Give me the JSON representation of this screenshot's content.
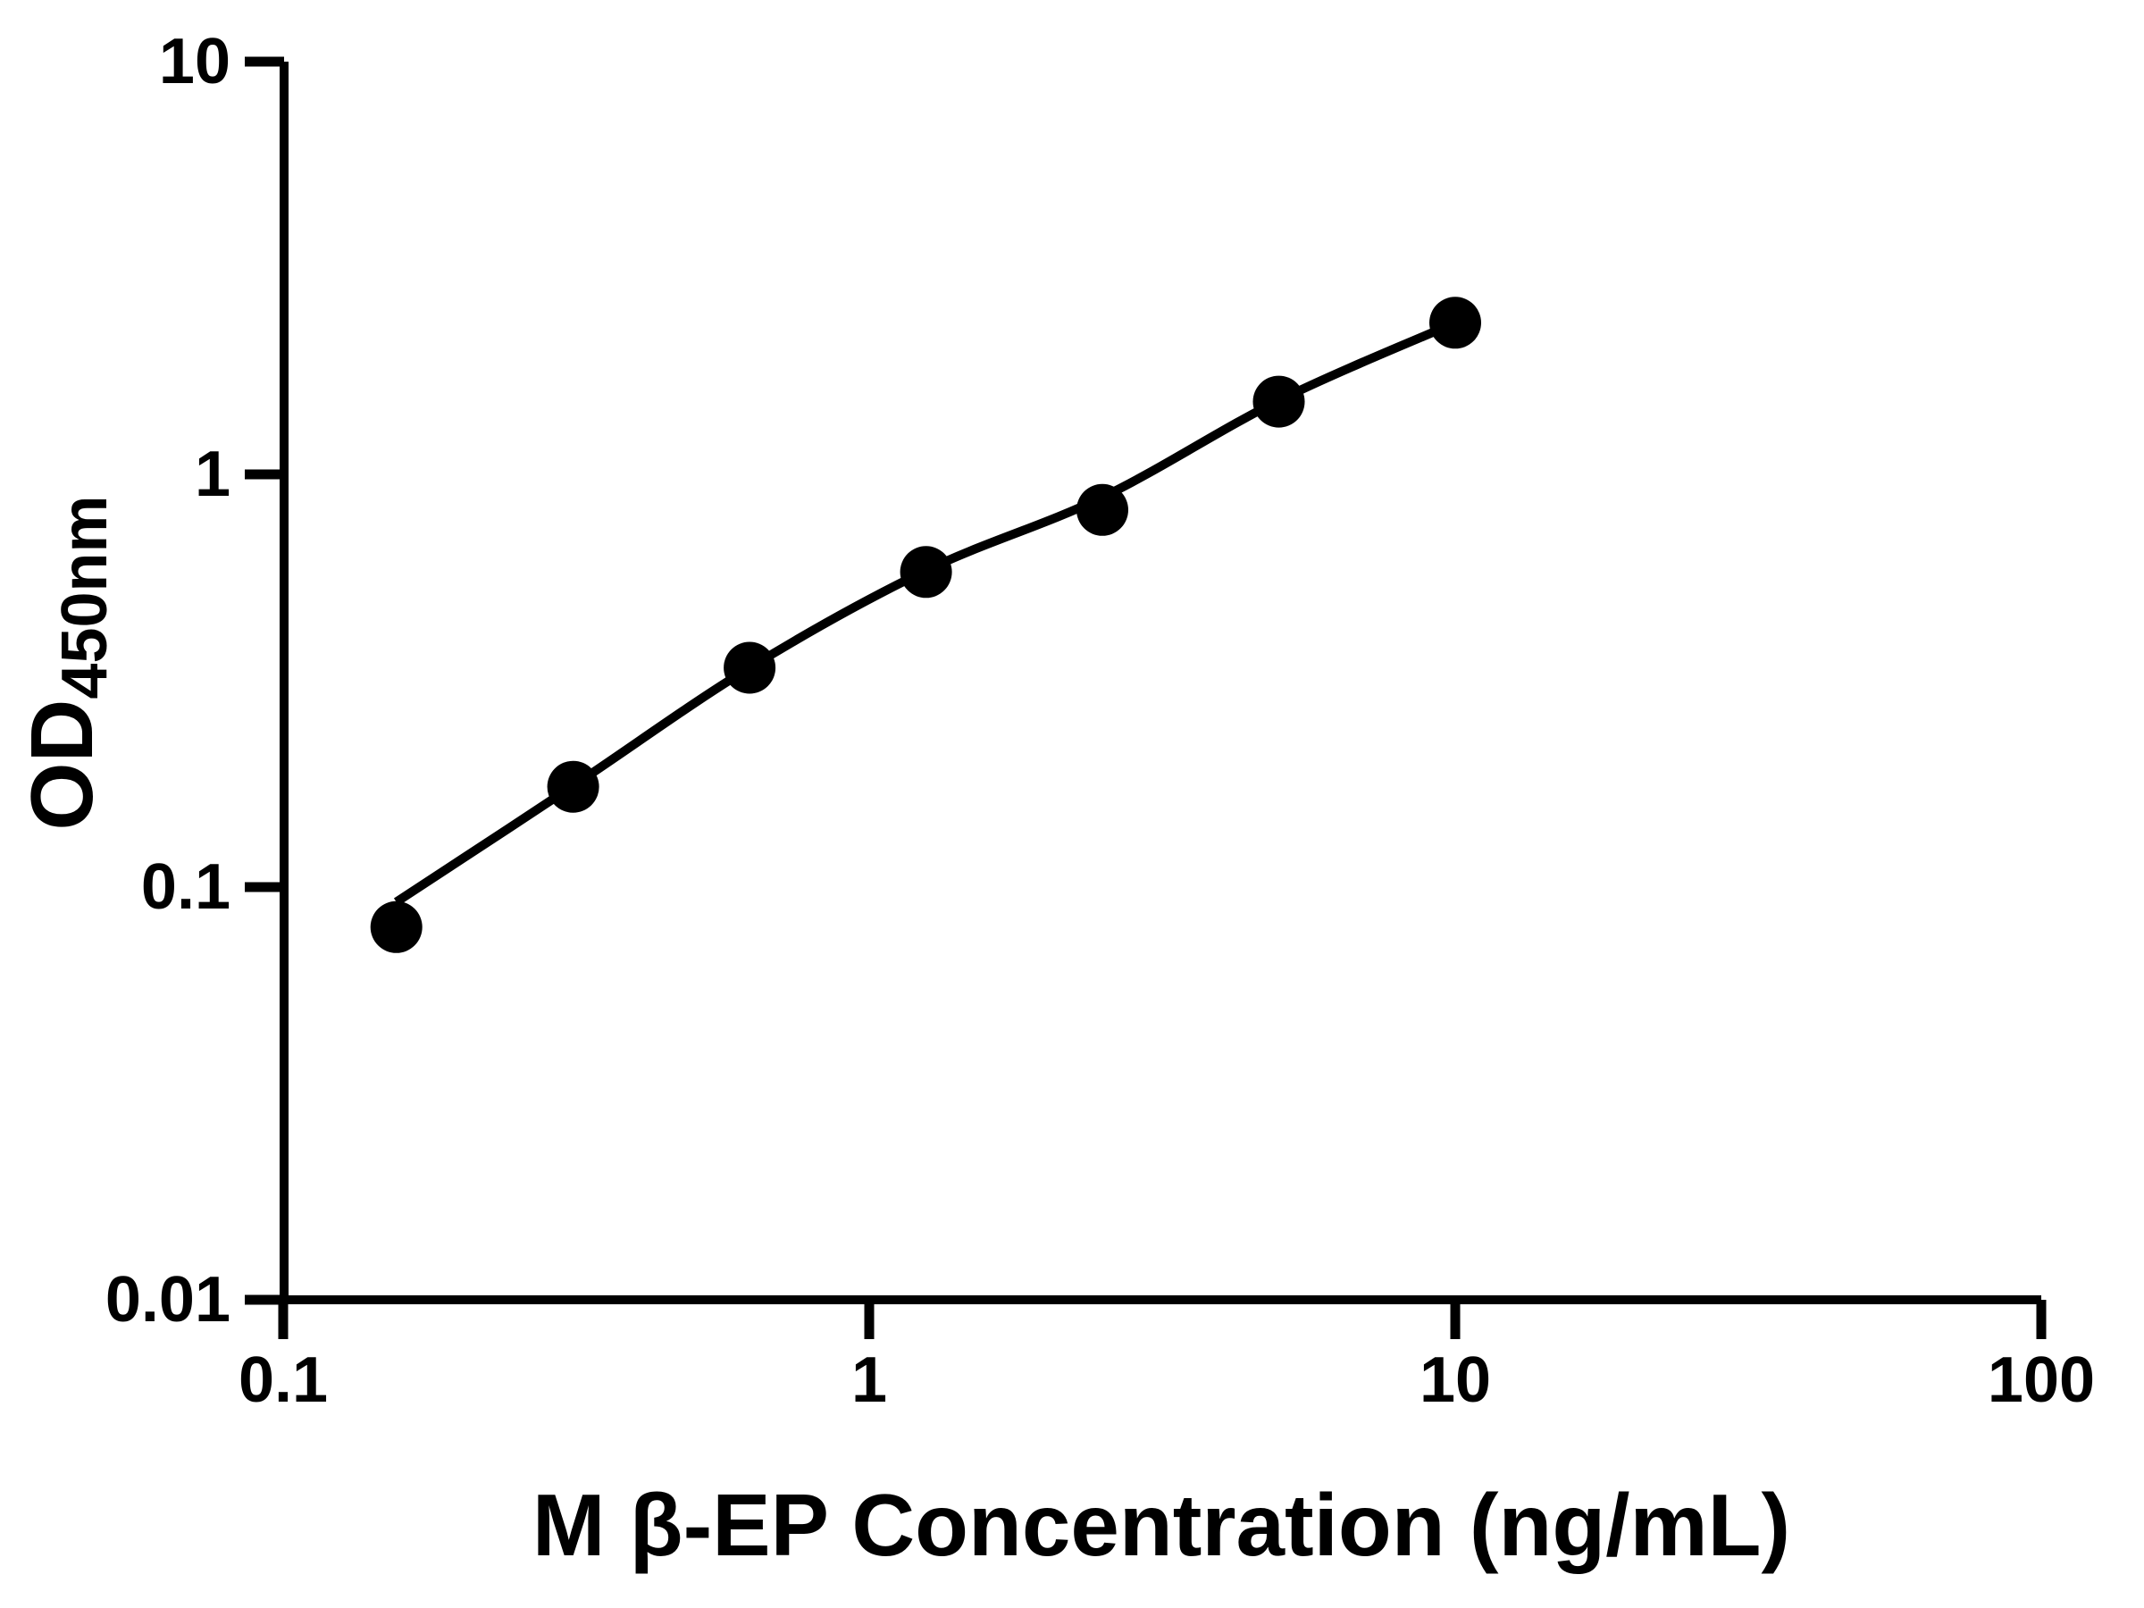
{
  "figure": {
    "background_color": "#ffffff",
    "axis_color": "#000000",
    "point_color": "#000000",
    "curve_color": "#000000"
  },
  "chart_data": {
    "type": "scatter",
    "subtype": "standard-curve-with-fit-line",
    "title": "",
    "xlabel": "M β-EP Concentration (ng/mL)",
    "ylabel_main": "OD",
    "ylabel_sub": "450nm",
    "x_scale": "log",
    "y_scale": "log",
    "xlim": [
      0.1,
      100
    ],
    "ylim": [
      0.01,
      10
    ],
    "x_ticks": [
      0.1,
      1,
      10,
      100
    ],
    "x_tick_labels": [
      "0.1",
      "1",
      "10",
      "100"
    ],
    "y_ticks": [
      0.01,
      0.1,
      1,
      10
    ],
    "y_tick_labels": [
      "0.01",
      "0.1",
      "1",
      "10"
    ],
    "grid": false,
    "legend_position": "none",
    "series": [
      {
        "name": "standard-points",
        "type": "scatter",
        "marker": "filled-circle",
        "x": [
          0.156,
          0.3125,
          0.625,
          1.25,
          2.5,
          5,
          10
        ],
        "y": [
          0.08,
          0.175,
          0.34,
          0.58,
          0.82,
          1.5,
          2.33
        ]
      },
      {
        "name": "fit-curve",
        "type": "line",
        "x": [
          0.156,
          0.3125,
          0.625,
          1.25,
          2.5,
          5,
          10
        ],
        "y": [
          0.092,
          0.176,
          0.34,
          0.585,
          0.88,
          1.51,
          2.33
        ]
      }
    ]
  }
}
